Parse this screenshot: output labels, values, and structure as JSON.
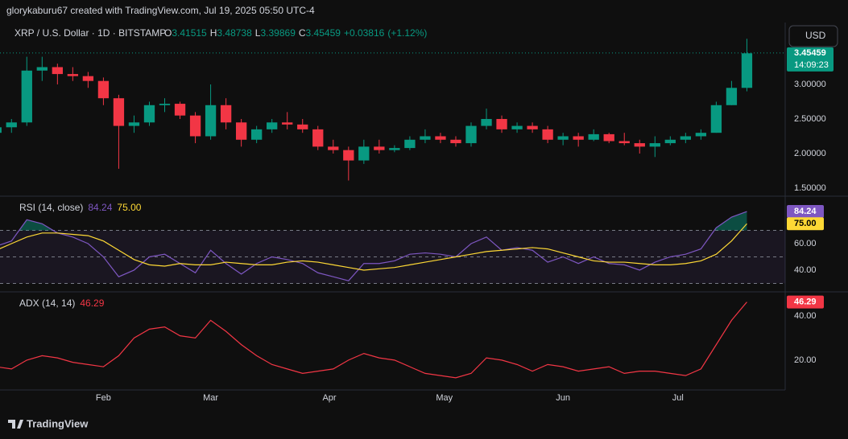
{
  "header": {
    "byline": "glorykaburu67 created with TradingView.com, Jul 19, 2025 05:50 UTC-4",
    "symbol": "XRP / U.S. Dollar · 1D · BITSTAMP",
    "ohlc": [
      {
        "key": "O",
        "value": 3.41515
      },
      {
        "key": "H",
        "value": 3.48738
      },
      {
        "key": "L",
        "value": 3.39869
      },
      {
        "key": "C",
        "value": 3.45459
      }
    ],
    "change": {
      "value": 0.03816,
      "label": "+0.03816"
    },
    "change_pct": {
      "value": 1.12,
      "label": "(+1.12%)"
    },
    "currency": "USD"
  },
  "footer": {
    "brand": "TradingView"
  },
  "chart_data": [
    {
      "type": "candlestick",
      "up_color": "#089981",
      "down_color": "#f23645",
      "x": [
        "2025-01-04",
        "2025-01-08",
        "2025-01-12",
        "2025-01-16",
        "2025-01-20",
        "2025-01-24",
        "2025-01-28",
        "2025-02-01",
        "2025-02-05",
        "2025-02-09",
        "2025-02-13",
        "2025-02-17",
        "2025-02-21",
        "2025-02-25",
        "2025-03-01",
        "2025-03-05",
        "2025-03-09",
        "2025-03-13",
        "2025-03-17",
        "2025-03-21",
        "2025-03-25",
        "2025-03-29",
        "2025-04-02",
        "2025-04-06",
        "2025-04-10",
        "2025-04-14",
        "2025-04-18",
        "2025-04-22",
        "2025-04-26",
        "2025-04-30",
        "2025-05-04",
        "2025-05-08",
        "2025-05-12",
        "2025-05-16",
        "2025-05-20",
        "2025-05-24",
        "2025-05-28",
        "2025-06-01",
        "2025-06-05",
        "2025-06-09",
        "2025-06-13",
        "2025-06-17",
        "2025-06-21",
        "2025-06-25",
        "2025-06-29",
        "2025-07-03",
        "2025-07-07",
        "2025-07-11",
        "2025-07-15",
        "2025-07-19"
      ],
      "open": [
        2.3,
        2.38,
        2.45,
        3.2,
        3.25,
        3.15,
        3.12,
        3.05,
        2.8,
        2.4,
        2.45,
        2.7,
        2.72,
        2.55,
        2.25,
        2.7,
        2.45,
        2.2,
        2.35,
        2.45,
        2.42,
        2.35,
        2.1,
        2.05,
        1.9,
        2.1,
        2.05,
        2.08,
        2.2,
        2.25,
        2.2,
        2.15,
        2.4,
        2.5,
        2.35,
        2.4,
        2.35,
        2.2,
        2.25,
        2.2,
        2.28,
        2.18,
        2.15,
        2.1,
        2.15,
        2.2,
        2.25,
        2.3,
        2.7,
        2.95
      ],
      "high": [
        2.42,
        2.5,
        3.4,
        3.4,
        3.3,
        3.25,
        3.18,
        3.1,
        2.85,
        2.55,
        2.75,
        2.8,
        2.75,
        2.6,
        3.0,
        2.8,
        2.5,
        2.4,
        2.5,
        2.6,
        2.5,
        2.4,
        2.2,
        2.1,
        2.2,
        2.2,
        2.12,
        2.25,
        2.35,
        2.3,
        2.25,
        2.45,
        2.65,
        2.55,
        2.45,
        2.45,
        2.4,
        2.3,
        2.3,
        2.35,
        2.3,
        2.3,
        2.2,
        2.25,
        2.25,
        2.3,
        2.35,
        2.75,
        3.05,
        3.66
      ],
      "low": [
        2.25,
        2.3,
        2.4,
        3.05,
        3.0,
        3.05,
        2.95,
        2.7,
        1.78,
        2.3,
        2.4,
        2.6,
        2.5,
        2.15,
        2.2,
        2.35,
        2.1,
        2.15,
        2.3,
        2.35,
        2.3,
        2.05,
        2.0,
        1.61,
        1.85,
        2.0,
        2.02,
        2.05,
        2.15,
        2.15,
        2.1,
        2.1,
        2.35,
        2.3,
        2.3,
        2.3,
        2.15,
        2.12,
        2.1,
        2.18,
        2.15,
        2.12,
        2.0,
        1.95,
        2.12,
        2.15,
        2.2,
        2.3,
        2.7,
        2.9
      ],
      "close": [
        2.38,
        2.45,
        3.2,
        3.25,
        3.15,
        3.12,
        3.05,
        2.8,
        2.4,
        2.45,
        2.7,
        2.72,
        2.55,
        2.25,
        2.7,
        2.45,
        2.2,
        2.35,
        2.45,
        2.42,
        2.35,
        2.1,
        2.05,
        1.9,
        2.1,
        2.05,
        2.08,
        2.2,
        2.25,
        2.2,
        2.15,
        2.4,
        2.5,
        2.35,
        2.4,
        2.35,
        2.2,
        2.25,
        2.2,
        2.28,
        2.18,
        2.15,
        2.1,
        2.15,
        2.2,
        2.25,
        2.3,
        2.7,
        2.95,
        3.45
      ],
      "xlim": [
        "2025-01-05",
        "2025-07-29"
      ],
      "xticks": [
        {
          "value": "2025-02-01",
          "label": "Feb"
        },
        {
          "value": "2025-03-01",
          "label": "Mar"
        },
        {
          "value": "2025-04-01",
          "label": "Apr"
        },
        {
          "value": "2025-05-01",
          "label": "May"
        },
        {
          "value": "2025-06-01",
          "label": "Jun"
        },
        {
          "value": "2025-07-01",
          "label": "Jul"
        }
      ],
      "ylim": [
        1.395,
        3.872
      ],
      "yticks": [
        {
          "value": 1.5,
          "label": "1.50000"
        },
        {
          "value": 2,
          "label": "2.00000"
        },
        {
          "value": 2.5,
          "label": "2.50000"
        },
        {
          "value": 3,
          "label": "3.00000"
        }
      ],
      "last_price": 3.45459,
      "countdown": "14:09:23"
    },
    {
      "type": "line",
      "title": "RSI (14, close)",
      "series": [
        {
          "color": "#7e57c2",
          "last_label": "84.24",
          "values": [
            58,
            62,
            78,
            75,
            68,
            65,
            60,
            50,
            35,
            40,
            50,
            52,
            45,
            38,
            55,
            45,
            37,
            45,
            50,
            48,
            45,
            38,
            35,
            32,
            45,
            45,
            47,
            52,
            53,
            52,
            50,
            60,
            65,
            55,
            57,
            55,
            46,
            50,
            45,
            50,
            45,
            44,
            40,
            46,
            50,
            52,
            56,
            72,
            80,
            84.24
          ]
        },
        {
          "color": "#fdd835",
          "last_label": "75.00",
          "values": [
            55,
            60,
            65,
            68,
            68,
            67,
            66,
            62,
            55,
            48,
            44,
            43,
            45,
            44,
            44,
            46,
            45,
            44,
            44,
            46,
            47,
            46,
            44,
            42,
            40,
            41,
            42,
            44,
            46,
            48,
            50,
            52,
            54,
            55,
            56,
            57,
            56,
            53,
            50,
            47,
            46,
            46,
            45,
            44,
            44,
            45,
            47,
            52,
            62,
            75
          ]
        }
      ],
      "ylim": [
        24.2,
        95.2
      ],
      "yticks": [
        {
          "value": 40,
          "label": "40.00"
        },
        {
          "value": 60,
          "label": "60.00"
        }
      ],
      "levels": [
        30,
        50,
        70
      ]
    },
    {
      "type": "line",
      "title": "ADX (14, 14)",
      "series": [
        {
          "color": "#f23645",
          "last_label": "46.29",
          "values": [
            17,
            16,
            20,
            22,
            21,
            19,
            18,
            17,
            22,
            30,
            34,
            35,
            31,
            30,
            38,
            33,
            27,
            22,
            18,
            16,
            14,
            15,
            16,
            20,
            23,
            21,
            20,
            17,
            14,
            13,
            12,
            14,
            21,
            20,
            18,
            15,
            18,
            17,
            15,
            16,
            17,
            14,
            15,
            15,
            14,
            13,
            16,
            27,
            38,
            46.29
          ]
        }
      ],
      "ylim": [
        6.5,
        50.5
      ],
      "yticks": [
        {
          "value": 20,
          "label": "20.00"
        },
        {
          "value": 40,
          "label": "40.00"
        }
      ]
    }
  ]
}
